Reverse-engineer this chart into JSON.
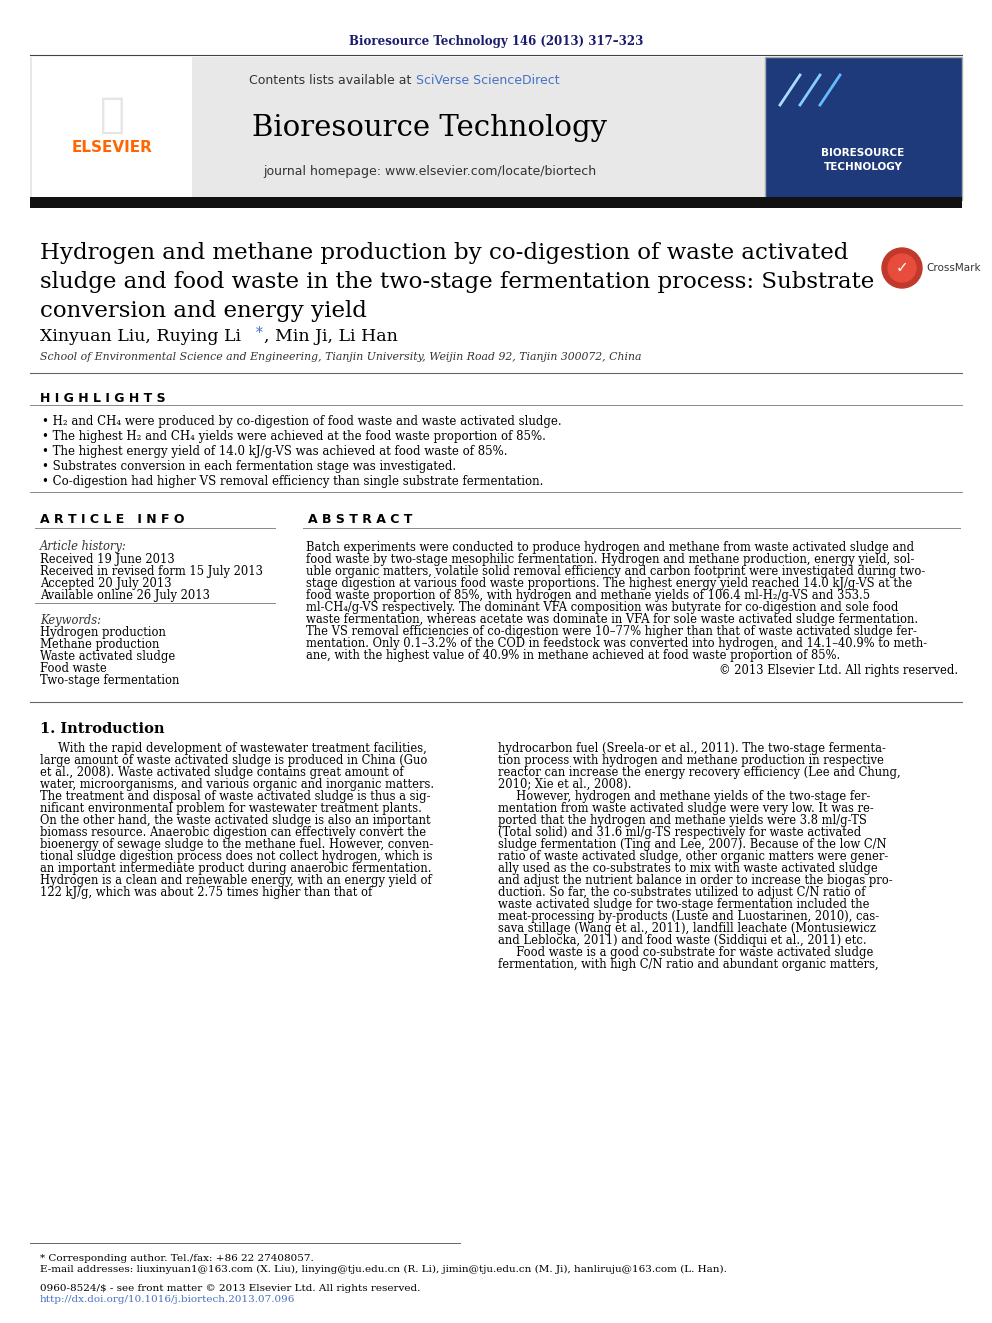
{
  "journal_ref": "Bioresource Technology 146 (2013) 317–323",
  "journal_name": "Bioresource Technology",
  "journal_url": "journal homepage: www.elsevier.com/locate/biortech",
  "contents_text": "Contents lists available at SciVerse ScienceDirect",
  "title": "Hydrogen and methane production by co-digestion of waste activated sludge and food waste in the two-stage fermentation process: Substrate conversion and energy yield",
  "authors": "Xinyuan Liu, Ruying Li*, Min Ji, Li Han",
  "affiliation": "School of Environmental Science and Engineering, Tianjin University, Weijin Road 92, Tianjin 300072, China",
  "highlights_title": "H I G H L I G H T S",
  "highlights": [
    "• H₂ and CH₄ were produced by co-digestion of food waste and waste activated sludge.",
    "• The highest H₂ and CH₄ yields were achieved at the food waste proportion of 85%.",
    "• The highest energy yield of 14.0 kJ/g-VS was achieved at food waste of 85%.",
    "• Substrates conversion in each fermentation stage was investigated.",
    "• Co-digestion had higher VS removal efficiency than single substrate fermentation."
  ],
  "article_info_title": "A R T I C L E   I N F O",
  "abstract_title": "A B S T R A C T",
  "article_history_label": "Article history:",
  "received": "Received 19 June 2013",
  "revised": "Received in revised form 15 July 2013",
  "accepted": "Accepted 20 July 2013",
  "available": "Available online 26 July 2013",
  "keywords_label": "Keywords:",
  "keywords": [
    "Hydrogen production",
    "Methane production",
    "Waste activated sludge",
    "Food waste",
    "Two-stage fermentation"
  ],
  "abstract_lines": [
    "Batch experiments were conducted to produce hydrogen and methane from waste activated sludge and",
    "food waste by two-stage mesophilic fermentation. Hydrogen and methane production, energy yield, sol-",
    "uble organic matters, volatile solid removal efficiency and carbon footprint were investigated during two-",
    "stage digestion at various food waste proportions. The highest energy yield reached 14.0 kJ/g-VS at the",
    "food waste proportion of 85%, with hydrogen and methane yields of 106.4 ml-H₂/g-VS and 353.5",
    "ml-CH₄/g-VS respectively. The dominant VFA composition was butyrate for co-digestion and sole food",
    "waste fermentation, whereas acetate was dominate in VFA for sole waste activated sludge fermentation.",
    "The VS removal efficiencies of co-digestion were 10–77% higher than that of waste activated sludge fer-",
    "mentation. Only 0.1–3.2% of the COD in feedstock was converted into hydrogen, and 14.1–40.9% to meth-",
    "ane, with the highest value of 40.9% in methane achieved at food waste proportion of 85%."
  ],
  "copyright": "© 2013 Elsevier Ltd. All rights reserved.",
  "section1_title": "1. Introduction",
  "intro_col1_lines": [
    "     With the rapid development of wastewater treatment facilities,",
    "large amount of waste activated sludge is produced in China (Guo",
    "et al., 2008). Waste activated sludge contains great amount of",
    "water, microorganisms, and various organic and inorganic matters.",
    "The treatment and disposal of waste activated sludge is thus a sig-",
    "nificant environmental problem for wastewater treatment plants.",
    "On the other hand, the waste activated sludge is also an important",
    "biomass resource. Anaerobic digestion can effectively convert the",
    "bioenergy of sewage sludge to the methane fuel. However, conven-",
    "tional sludge digestion process does not collect hydrogen, which is",
    "an important intermediate product during anaerobic fermentation.",
    "Hydrogen is a clean and renewable energy, with an energy yield of",
    "122 kJ/g, which was about 2.75 times higher than that of"
  ],
  "intro_col2_lines": [
    "hydrocarbon fuel (Sreela-or et al., 2011). The two-stage fermenta-",
    "tion process with hydrogen and methane production in respective",
    "reactor can increase the energy recovery efficiency (Lee and Chung,",
    "2010; Xie et al., 2008).",
    "     However, hydrogen and methane yields of the two-stage fer-",
    "mentation from waste activated sludge were very low. It was re-",
    "ported that the hydrogen and methane yields were 3.8 ml/g-TS",
    "(Total solid) and 31.6 ml/g-TS respectively for waste activated",
    "sludge fermentation (Ting and Lee, 2007). Because of the low C/N",
    "ratio of waste activated sludge, other organic matters were gener-",
    "ally used as the co-substrates to mix with waste activated sludge",
    "and adjust the nutrient balance in order to increase the biogas pro-",
    "duction. So far, the co-substrates utilized to adjust C/N ratio of",
    "waste activated sludge for two-stage fermentation included the",
    "meat-processing by-products (Luste and Luostarinen, 2010), cas-",
    "sava stillage (Wang et al., 2011), landfill leachate (Montusiewicz",
    "and Leblocka, 2011) and food waste (Siddiqui et al., 2011) etc.",
    "     Food waste is a good co-substrate for waste activated sludge",
    "fermentation, with high C/N ratio and abundant organic matters,"
  ],
  "footnote1": "* Corresponding author. Tel./fax: +86 22 27408057.",
  "footnote2": "E-mail addresses: liuxinyuan1@163.com (X. Liu), linying@tju.edu.cn (R. Li), jimin@tju.edu.cn (M. Ji), hanliruju@163.com (L. Han).",
  "footnote3": "0960-8524/$ - see front matter © 2013 Elsevier Ltd. All rights reserved.",
  "footnote4": "http://dx.doi.org/10.1016/j.biortech.2013.07.096",
  "background_color": "#ffffff",
  "journal_ref_color": "#1a1a6e",
  "elsevier_color": "#ff6600",
  "sciverse_color": "#4472c4",
  "header_bg_color": "#e8e8e8",
  "cover_bg_color": "#1e3a7a"
}
